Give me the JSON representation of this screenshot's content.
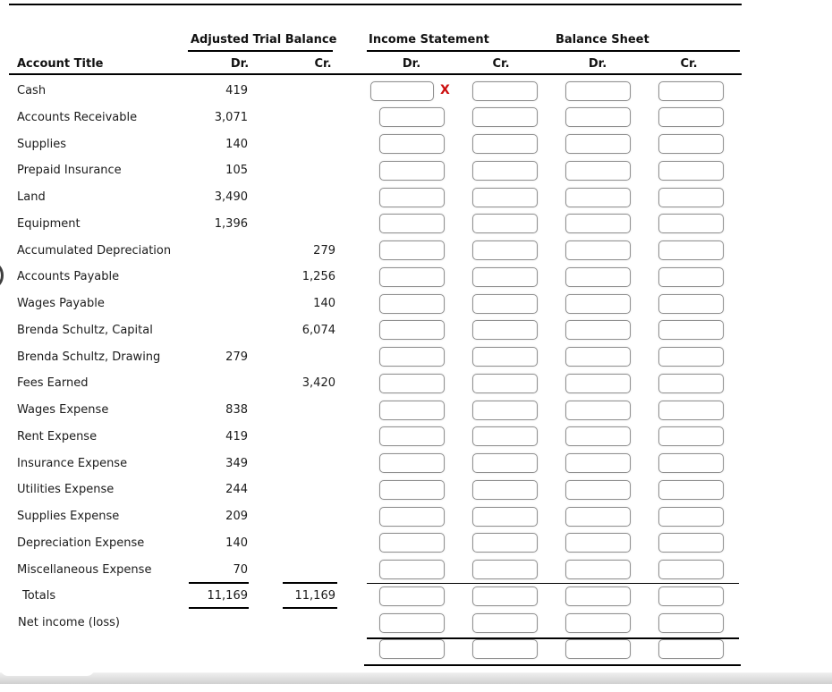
{
  "header": {
    "account_title": "Account Title",
    "groups": [
      {
        "label": "Adjusted Trial Balance",
        "columns": [
          "Dr.",
          "Cr."
        ]
      },
      {
        "label": "Income Statement",
        "columns": [
          "Dr.",
          "Cr."
        ]
      },
      {
        "label": "Balance Sheet",
        "columns": [
          "Dr.",
          "Cr."
        ]
      }
    ]
  },
  "rows": [
    {
      "account": "Cash",
      "atb_dr": "419",
      "atb_cr": "",
      "is_dr": "",
      "is_cr": "",
      "bs_dr": "",
      "bs_cr": "",
      "flag": "X"
    },
    {
      "account": "Accounts Receivable",
      "atb_dr": "3,071",
      "atb_cr": "",
      "is_dr": "",
      "is_cr": "",
      "bs_dr": "",
      "bs_cr": ""
    },
    {
      "account": "Supplies",
      "atb_dr": "140",
      "atb_cr": "",
      "is_dr": "",
      "is_cr": "",
      "bs_dr": "",
      "bs_cr": ""
    },
    {
      "account": "Prepaid Insurance",
      "atb_dr": "105",
      "atb_cr": "",
      "is_dr": "",
      "is_cr": "",
      "bs_dr": "",
      "bs_cr": ""
    },
    {
      "account": "Land",
      "atb_dr": "3,490",
      "atb_cr": "",
      "is_dr": "",
      "is_cr": "",
      "bs_dr": "",
      "bs_cr": ""
    },
    {
      "account": "Equipment",
      "atb_dr": "1,396",
      "atb_cr": "",
      "is_dr": "",
      "is_cr": "",
      "bs_dr": "",
      "bs_cr": ""
    },
    {
      "account": "Accumulated Depreciation",
      "atb_dr": "",
      "atb_cr": "279",
      "is_dr": "",
      "is_cr": "",
      "bs_dr": "",
      "bs_cr": ""
    },
    {
      "account": "Accounts Payable",
      "atb_dr": "",
      "atb_cr": "1,256",
      "is_dr": "",
      "is_cr": "",
      "bs_dr": "",
      "bs_cr": ""
    },
    {
      "account": "Wages Payable",
      "atb_dr": "",
      "atb_cr": "140",
      "is_dr": "",
      "is_cr": "",
      "bs_dr": "",
      "bs_cr": ""
    },
    {
      "account": "Brenda Schultz, Capital",
      "atb_dr": "",
      "atb_cr": "6,074",
      "is_dr": "",
      "is_cr": "",
      "bs_dr": "",
      "bs_cr": ""
    },
    {
      "account": "Brenda Schultz, Drawing",
      "atb_dr": "279",
      "atb_cr": "",
      "is_dr": "",
      "is_cr": "",
      "bs_dr": "",
      "bs_cr": ""
    },
    {
      "account": "Fees Earned",
      "atb_dr": "",
      "atb_cr": "3,420",
      "is_dr": "",
      "is_cr": "",
      "bs_dr": "",
      "bs_cr": ""
    },
    {
      "account": "Wages Expense",
      "atb_dr": "838",
      "atb_cr": "",
      "is_dr": "",
      "is_cr": "",
      "bs_dr": "",
      "bs_cr": ""
    },
    {
      "account": "Rent Expense",
      "atb_dr": "419",
      "atb_cr": "",
      "is_dr": "",
      "is_cr": "",
      "bs_dr": "",
      "bs_cr": ""
    },
    {
      "account": "Insurance Expense",
      "atb_dr": "349",
      "atb_cr": "",
      "is_dr": "",
      "is_cr": "",
      "bs_dr": "",
      "bs_cr": ""
    },
    {
      "account": "Utilities Expense",
      "atb_dr": "244",
      "atb_cr": "",
      "is_dr": "",
      "is_cr": "",
      "bs_dr": "",
      "bs_cr": ""
    },
    {
      "account": "Supplies Expense",
      "atb_dr": "209",
      "atb_cr": "",
      "is_dr": "",
      "is_cr": "",
      "bs_dr": "",
      "bs_cr": ""
    },
    {
      "account": "Depreciation Expense",
      "atb_dr": "140",
      "atb_cr": "",
      "is_dr": "",
      "is_cr": "",
      "bs_dr": "",
      "bs_cr": ""
    },
    {
      "account": "Miscellaneous Expense",
      "atb_dr": "70",
      "atb_cr": "",
      "is_dr": "",
      "is_cr": "",
      "bs_dr": "",
      "bs_cr": ""
    }
  ],
  "summary_rows": [
    {
      "label": "Totals",
      "atb_dr": "11,169",
      "atb_cr": "11,169",
      "is_dr": "",
      "is_cr": "",
      "bs_dr": "",
      "bs_cr": ""
    },
    {
      "label": "Net income (loss)",
      "atb_dr": "",
      "atb_cr": "",
      "is_dr": "",
      "is_cr": "",
      "bs_dr": "",
      "bs_cr": ""
    },
    {
      "label": "",
      "atb_dr": "",
      "atb_cr": "",
      "is_dr": "",
      "is_cr": "",
      "bs_dr": "",
      "bs_cr": ""
    }
  ],
  "colors": {
    "error_x": "#cc0f0f",
    "box_border": "#8f8f8f",
    "rule": "#000000",
    "scrollbar_track": "#dedede"
  }
}
